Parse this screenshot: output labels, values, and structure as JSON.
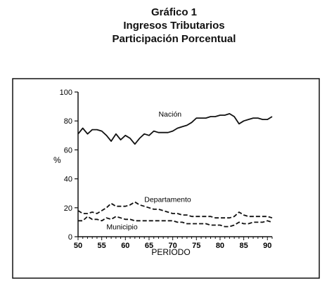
{
  "header": {
    "line1": "Gráfico 1",
    "line2": "Ingresos Tributarios",
    "line3": "Participación Porcentual"
  },
  "chart_data": {
    "type": "line",
    "xlabel": "PERIODO",
    "ylabel": "%",
    "xlim": [
      50,
      91
    ],
    "ylim": [
      0,
      100
    ],
    "x_ticks": [
      50,
      55,
      60,
      65,
      70,
      75,
      80,
      85,
      90
    ],
    "y_ticks": [
      0,
      20,
      40,
      60,
      80,
      100
    ],
    "grid": false,
    "series": [
      {
        "name": "Nación",
        "style": "solid",
        "x": [
          50,
          51,
          52,
          53,
          54,
          55,
          56,
          57,
          58,
          59,
          60,
          61,
          62,
          63,
          64,
          65,
          66,
          67,
          68,
          69,
          70,
          71,
          72,
          73,
          74,
          75,
          76,
          77,
          78,
          79,
          80,
          81,
          82,
          83,
          84,
          85,
          86,
          87,
          88,
          89,
          90,
          91
        ],
        "values": [
          71,
          75,
          71,
          74,
          74,
          73,
          70,
          66,
          71,
          67,
          70,
          68,
          64,
          68,
          71,
          70,
          73,
          72,
          72,
          72,
          73,
          75,
          76,
          77,
          79,
          82,
          82,
          82,
          83,
          83,
          84,
          84,
          85,
          83,
          78,
          80,
          81,
          82,
          82,
          81,
          81,
          83
        ]
      },
      {
        "name": "Departamento",
        "style": "dashed",
        "x": [
          50,
          51,
          52,
          53,
          54,
          55,
          56,
          57,
          58,
          59,
          60,
          61,
          62,
          63,
          64,
          65,
          66,
          67,
          68,
          69,
          70,
          71,
          72,
          73,
          74,
          75,
          76,
          77,
          78,
          79,
          80,
          81,
          82,
          83,
          84,
          85,
          86,
          87,
          88,
          89,
          90,
          91
        ],
        "values": [
          18,
          16,
          16,
          17,
          16,
          18,
          20,
          23,
          21,
          21,
          21,
          22,
          24,
          22,
          21,
          20,
          19,
          19,
          18,
          17,
          16,
          16,
          15,
          15,
          14,
          14,
          14,
          14,
          14,
          13,
          13,
          13,
          13,
          14,
          17,
          15,
          14,
          14,
          14,
          14,
          14,
          13
        ]
      },
      {
        "name": "Municipio",
        "style": "dashed",
        "x": [
          50,
          51,
          52,
          53,
          54,
          55,
          56,
          57,
          58,
          59,
          60,
          61,
          62,
          63,
          64,
          65,
          66,
          67,
          68,
          69,
          70,
          71,
          72,
          73,
          74,
          75,
          76,
          77,
          78,
          79,
          80,
          81,
          82,
          83,
          84,
          85,
          86,
          87,
          88,
          89,
          90,
          91
        ],
        "values": [
          11,
          11,
          14,
          12,
          12,
          11,
          13,
          12,
          14,
          13,
          12,
          12,
          11,
          11,
          11,
          11,
          11,
          11,
          11,
          11,
          11,
          10,
          10,
          9,
          9,
          9,
          9,
          9,
          8,
          8,
          8,
          7,
          7,
          8,
          10,
          9,
          9,
          10,
          10,
          10,
          11,
          10
        ]
      }
    ]
  }
}
